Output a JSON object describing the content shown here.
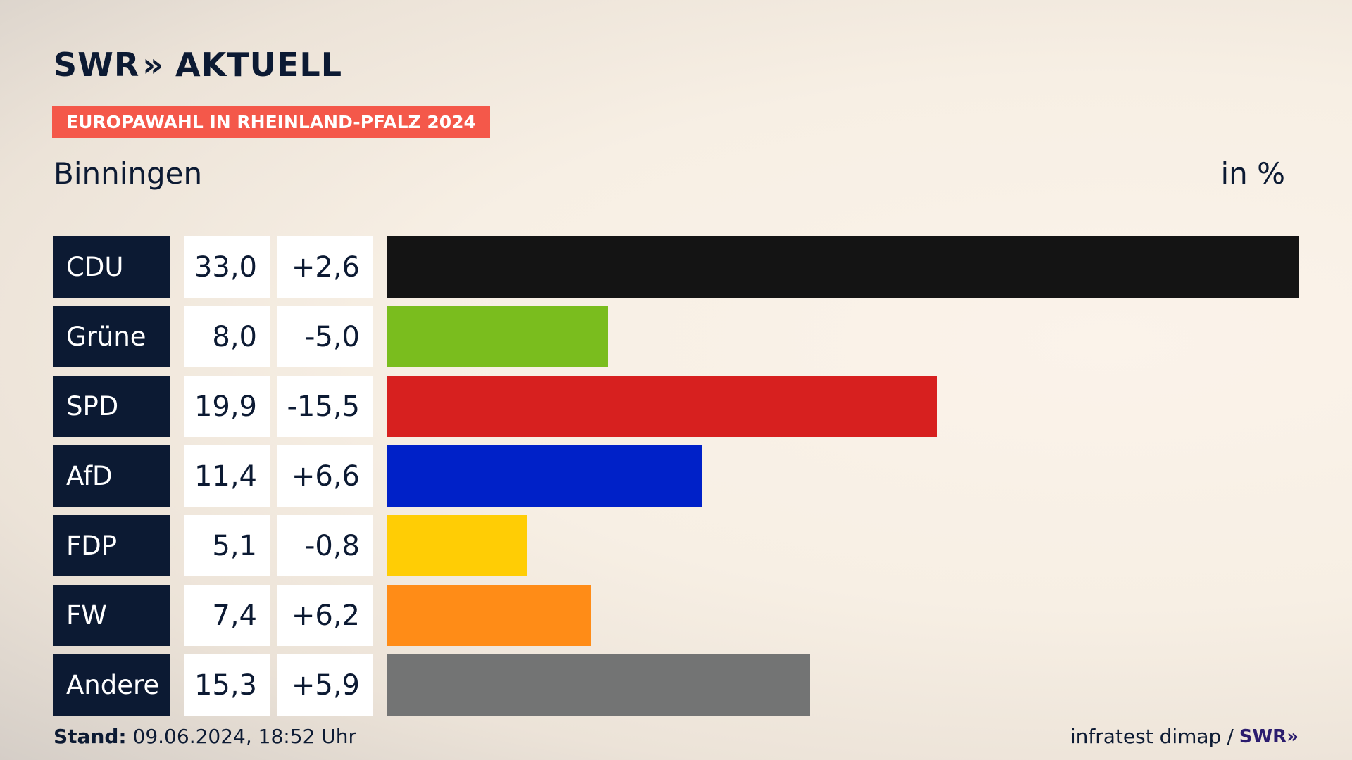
{
  "header": {
    "logo_text": "SWR",
    "logo_chevrons": "»",
    "logo_suffix": "AKTUELL",
    "kicker": "EUROPAWAHL IN RHEINLAND-PFALZ 2024",
    "subtitle": "Binningen",
    "unit": "in %"
  },
  "colors": {
    "navy": "#0c1a33",
    "kicker_bg": "#f4584a"
  },
  "chart_data": {
    "type": "bar",
    "orientation": "horizontal",
    "categories": [
      "CDU",
      "Grüne",
      "SPD",
      "AfD",
      "FDP",
      "FW",
      "Andere"
    ],
    "values": [
      33.0,
      8.0,
      19.9,
      11.4,
      5.1,
      7.4,
      15.3
    ],
    "value_labels": [
      "33,0",
      "8,0",
      "19,9",
      "11,4",
      "5,1",
      "7,4",
      "15,3"
    ],
    "changes": [
      2.6,
      -5.0,
      -15.5,
      6.6,
      -0.8,
      6.2,
      5.9
    ],
    "change_labels": [
      "+2,6",
      "-5,0",
      "-15,5",
      "+6,6",
      "-0,8",
      "+6,2",
      "+5,9"
    ],
    "colors": [
      "#141414",
      "#7abd1e",
      "#d7201f",
      "#0021c8",
      "#ffcd05",
      "#ff8c17",
      "#737474"
    ],
    "xlim": [
      0,
      33.0
    ],
    "grid": false
  },
  "footer": {
    "stand_label": "Stand:",
    "stand_value": "09.06.2024, 18:52 Uhr",
    "source": "infratest dimap",
    "separator": "/",
    "source_brand": "SWR»"
  }
}
